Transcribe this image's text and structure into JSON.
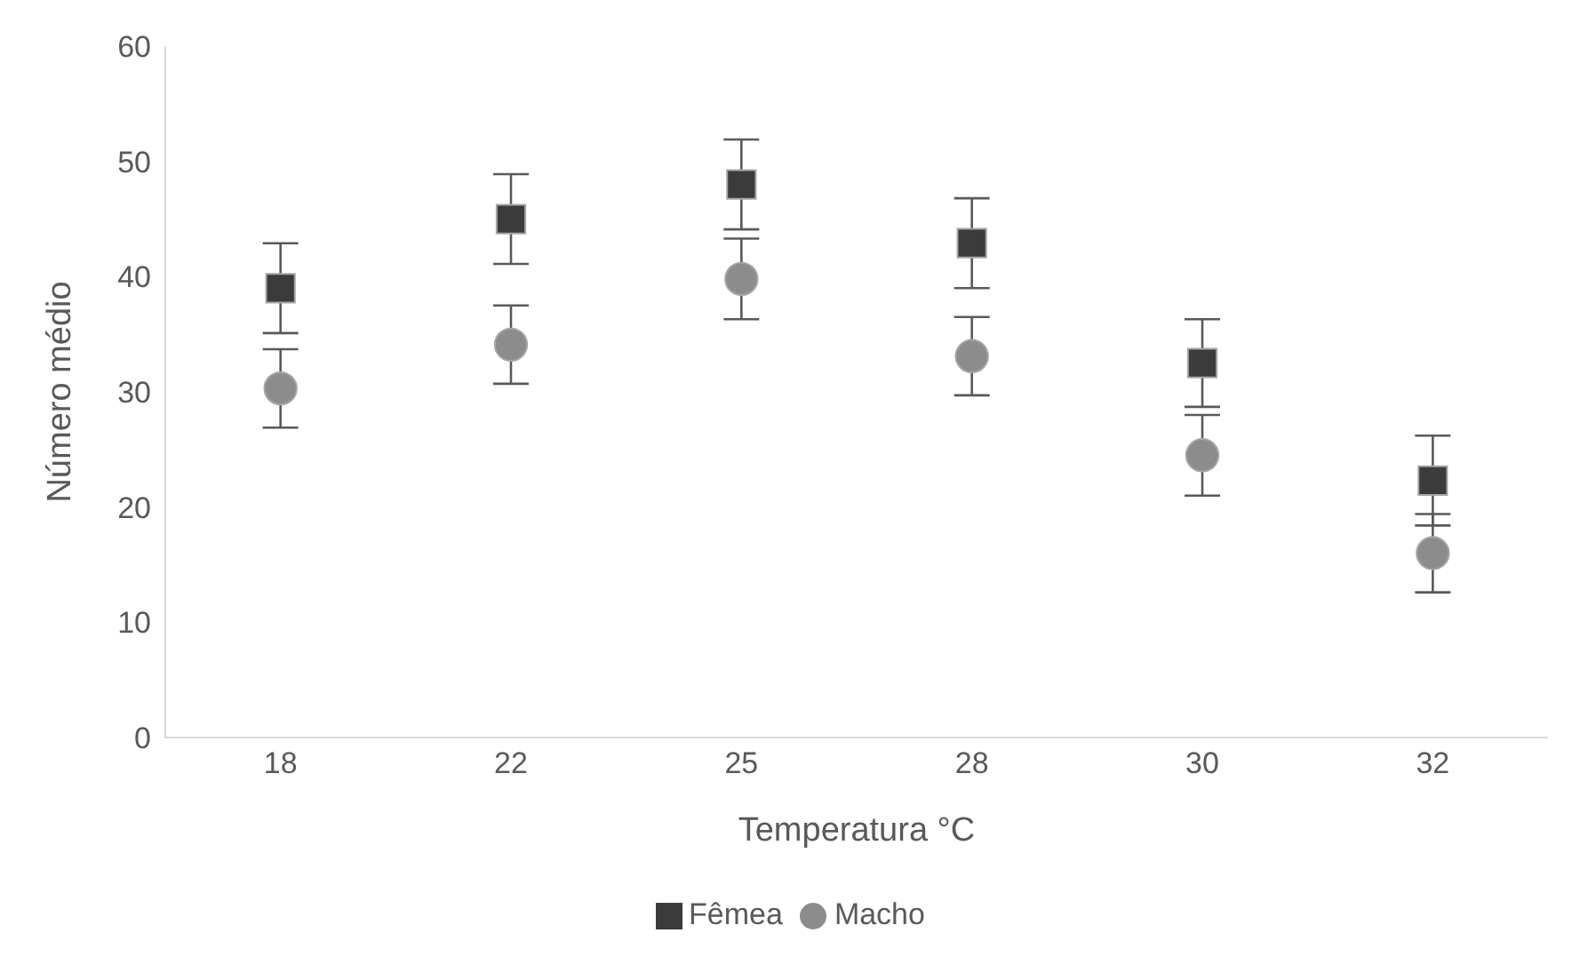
{
  "chart_data": {
    "type": "scatter",
    "xlabel": "Temperatura °C",
    "ylabel": "Número médio",
    "categories": [
      "18",
      "22",
      "25",
      "28",
      "30",
      "32"
    ],
    "ylim": [
      0,
      60
    ],
    "yticks": [
      0,
      10,
      20,
      30,
      40,
      50,
      60
    ],
    "grid": false,
    "legend": "bottom",
    "series": [
      {
        "name": "Macho",
        "color": "#8c8c8c",
        "marker": "circle",
        "values": [
          30.3,
          34.1,
          39.8,
          33.1,
          24.5,
          16.0
        ],
        "errors": [
          3.4,
          3.4,
          3.5,
          3.4,
          3.5,
          3.4
        ]
      },
      {
        "name": "Fêmea",
        "color": "#3b3b3b",
        "marker": "square",
        "values": [
          39.0,
          45.0,
          48.0,
          42.9,
          32.5,
          22.3
        ],
        "errors": [
          3.9,
          3.9,
          3.9,
          3.9,
          3.8,
          3.9
        ]
      }
    ]
  }
}
